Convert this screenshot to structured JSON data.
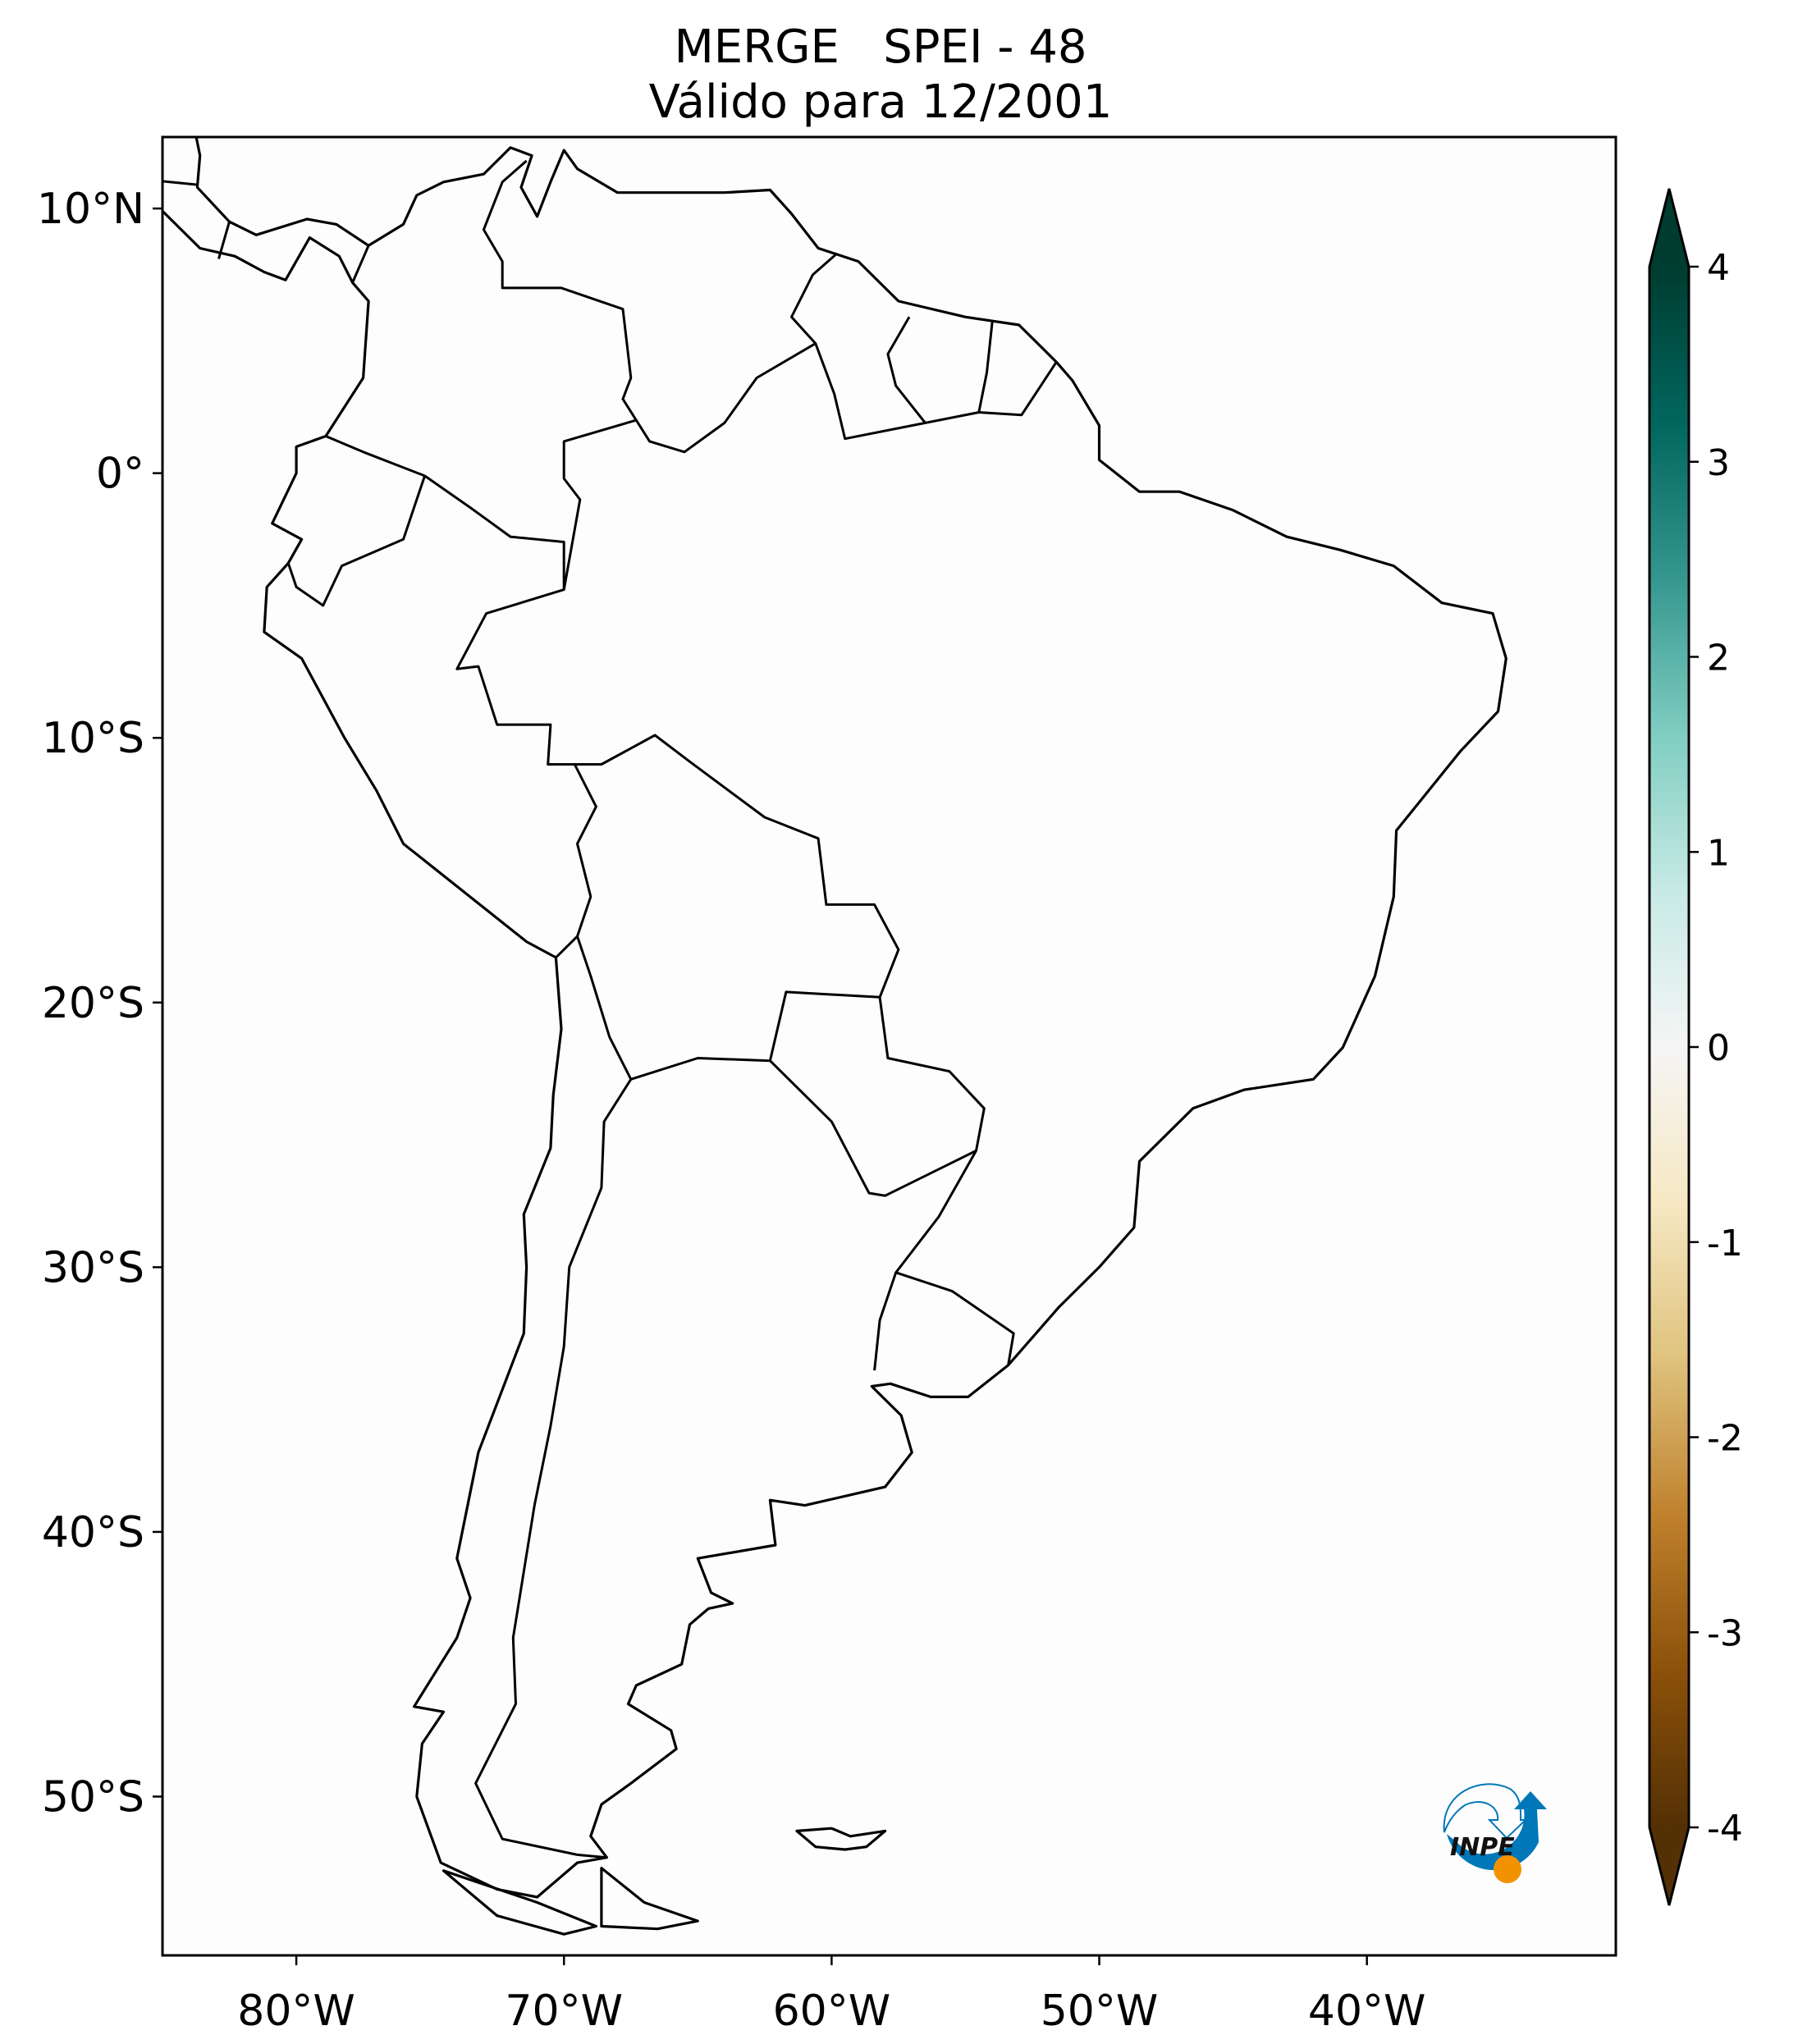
{
  "title": {
    "line1": "MERGE   SPEI - 48",
    "line2": "Válido para 12/2001"
  },
  "map": {
    "projection": "PlateCarree",
    "lon_range": [
      -85,
      -30.7
    ],
    "lat_range": [
      -56,
      12.7
    ],
    "lat_ticks": [
      {
        "value": 10,
        "label": "10°N"
      },
      {
        "value": 0,
        "label": "0°"
      },
      {
        "value": -10,
        "label": "10°S"
      },
      {
        "value": -20,
        "label": "20°S"
      },
      {
        "value": -30,
        "label": "30°S"
      },
      {
        "value": -40,
        "label": "40°S"
      },
      {
        "value": -50,
        "label": "50°S"
      }
    ],
    "lon_ticks": [
      {
        "value": -80,
        "label": "80°W"
      },
      {
        "value": -70,
        "label": "70°W"
      },
      {
        "value": -60,
        "label": "60°W"
      },
      {
        "value": -50,
        "label": "50°W"
      },
      {
        "value": -40,
        "label": "40°W"
      }
    ],
    "field_value_shown": 0
  },
  "colorbar": {
    "colormap": "BrBG",
    "range": [
      -4,
      4
    ],
    "extend": "both",
    "ticks": [
      {
        "value": 4,
        "label": "4"
      },
      {
        "value": 3,
        "label": "3"
      },
      {
        "value": 2,
        "label": "2"
      },
      {
        "value": 1,
        "label": "1"
      },
      {
        "value": 0,
        "label": "0"
      },
      {
        "value": -1,
        "label": "-1"
      },
      {
        "value": -2,
        "label": "-2"
      },
      {
        "value": -3,
        "label": "-3"
      },
      {
        "value": -4,
        "label": "-4"
      }
    ],
    "colors": [
      "#543005",
      "#8c510a",
      "#bf812d",
      "#dfc27d",
      "#f6e8c3",
      "#f5f5f5",
      "#c7eae5",
      "#80cdc1",
      "#35978f",
      "#01665e",
      "#003c30"
    ]
  },
  "logo": {
    "text": "INPE",
    "blue": "#0077b8",
    "orange": "#f39200"
  }
}
